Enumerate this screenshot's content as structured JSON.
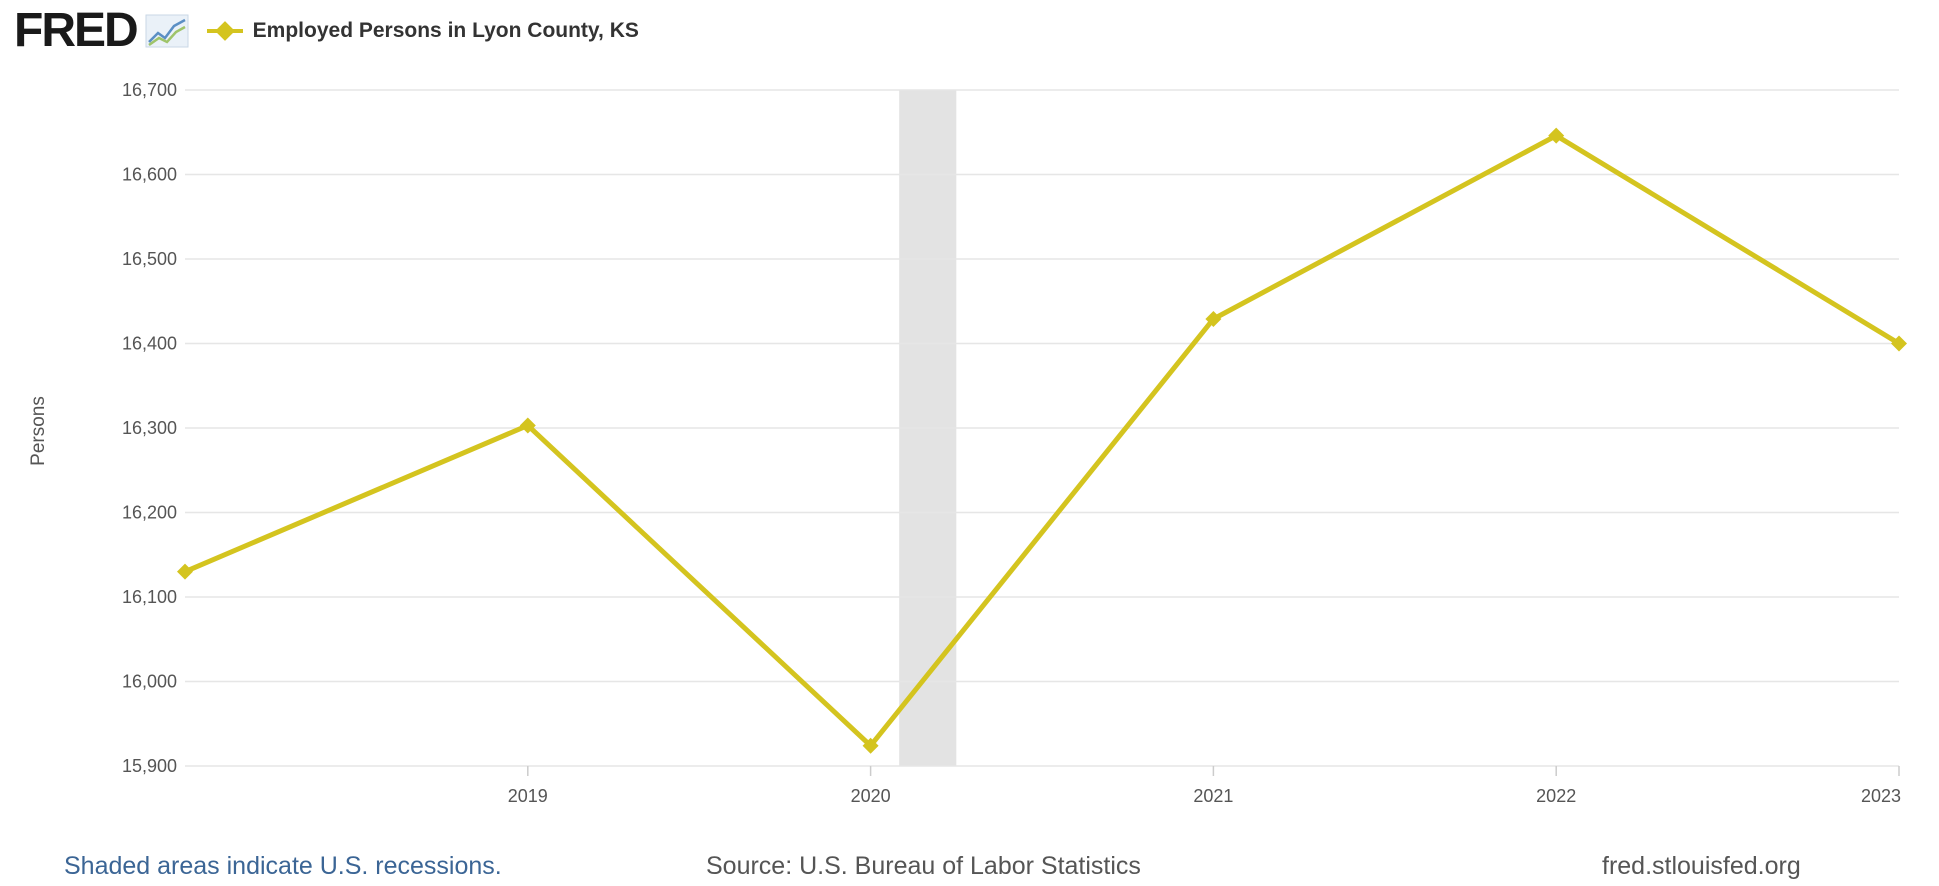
{
  "header": {
    "logo_text": "FRED",
    "legend_label": "Employed Persons in Lyon County, KS"
  },
  "colors": {
    "series": "#d4c41f",
    "grid": "#e6e6e6",
    "recession": "#e3e3e3",
    "link": "#3b6595"
  },
  "icons": [
    "fred-logo-chart-icon",
    "legend-diamond-icon"
  ],
  "chart_data": {
    "type": "line",
    "title": "",
    "xlabel": "",
    "ylabel": "Persons",
    "x": [
      "2018",
      "2019",
      "2020",
      "2021",
      "2022",
      "2023"
    ],
    "x_tick_labels": [
      "2019",
      "2020",
      "2021",
      "2022",
      "2023"
    ],
    "y_tick_labels": [
      "16,700",
      "16,600",
      "16,500",
      "16,400",
      "16,300",
      "16,200",
      "16,100",
      "16,000",
      "15,900"
    ],
    "y_ticks": [
      16700,
      16600,
      16500,
      16400,
      16300,
      16200,
      16100,
      16000,
      15900
    ],
    "ylim": [
      15900,
      16700
    ],
    "grid": true,
    "series": [
      {
        "name": "Employed Persons in Lyon County, KS",
        "values": [
          16130,
          16303,
          15924,
          16429,
          16646,
          16400
        ]
      }
    ],
    "recessions": [
      {
        "start": "2020-02",
        "end": "2020-04"
      }
    ]
  },
  "footer": {
    "recession_note": "Shaded areas indicate U.S. recessions.",
    "source": "Source: U.S. Bureau of Labor Statistics",
    "site": "fred.stlouisfed.org"
  }
}
